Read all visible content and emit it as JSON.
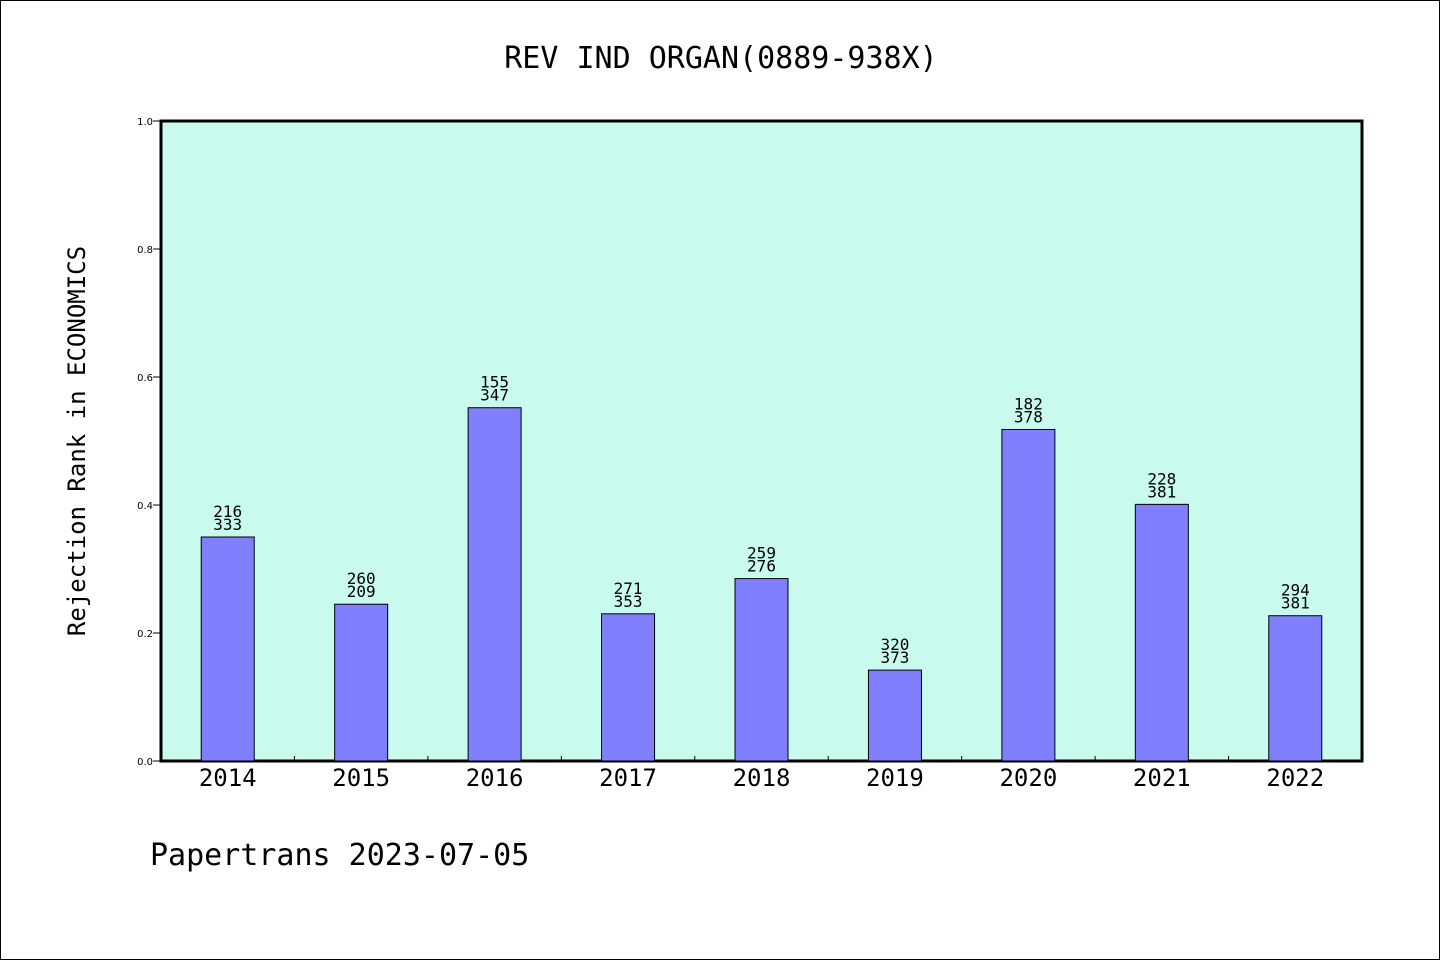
{
  "chart_data": {
    "type": "bar",
    "title": "REV IND ORGAN(0889-938X)",
    "xlabel": "",
    "ylabel": "Rejection Rank in ECONOMICS",
    "ylim": [
      0,
      1.0
    ],
    "yticks": [
      "0.0",
      "0.2",
      "0.4",
      "0.6",
      "0.8",
      "1.0"
    ],
    "categories": [
      "2014",
      "2015",
      "2016",
      "2017",
      "2018",
      "2019",
      "2020",
      "2021",
      "2022"
    ],
    "values": [
      0.35,
      0.245,
      0.552,
      0.23,
      0.285,
      0.142,
      0.518,
      0.401,
      0.227
    ],
    "labels_top": [
      "216",
      "260",
      "155",
      "271",
      "259",
      "320",
      "182",
      "228",
      "294"
    ],
    "labels_bottom": [
      "333",
      "209",
      "347",
      "353",
      "276",
      "373",
      "378",
      "381",
      "381"
    ],
    "colors": {
      "plot_bg": "#c8fbee",
      "bar": "#8080ff"
    },
    "grid": false
  },
  "footer": "Papertrans 2023-07-05"
}
